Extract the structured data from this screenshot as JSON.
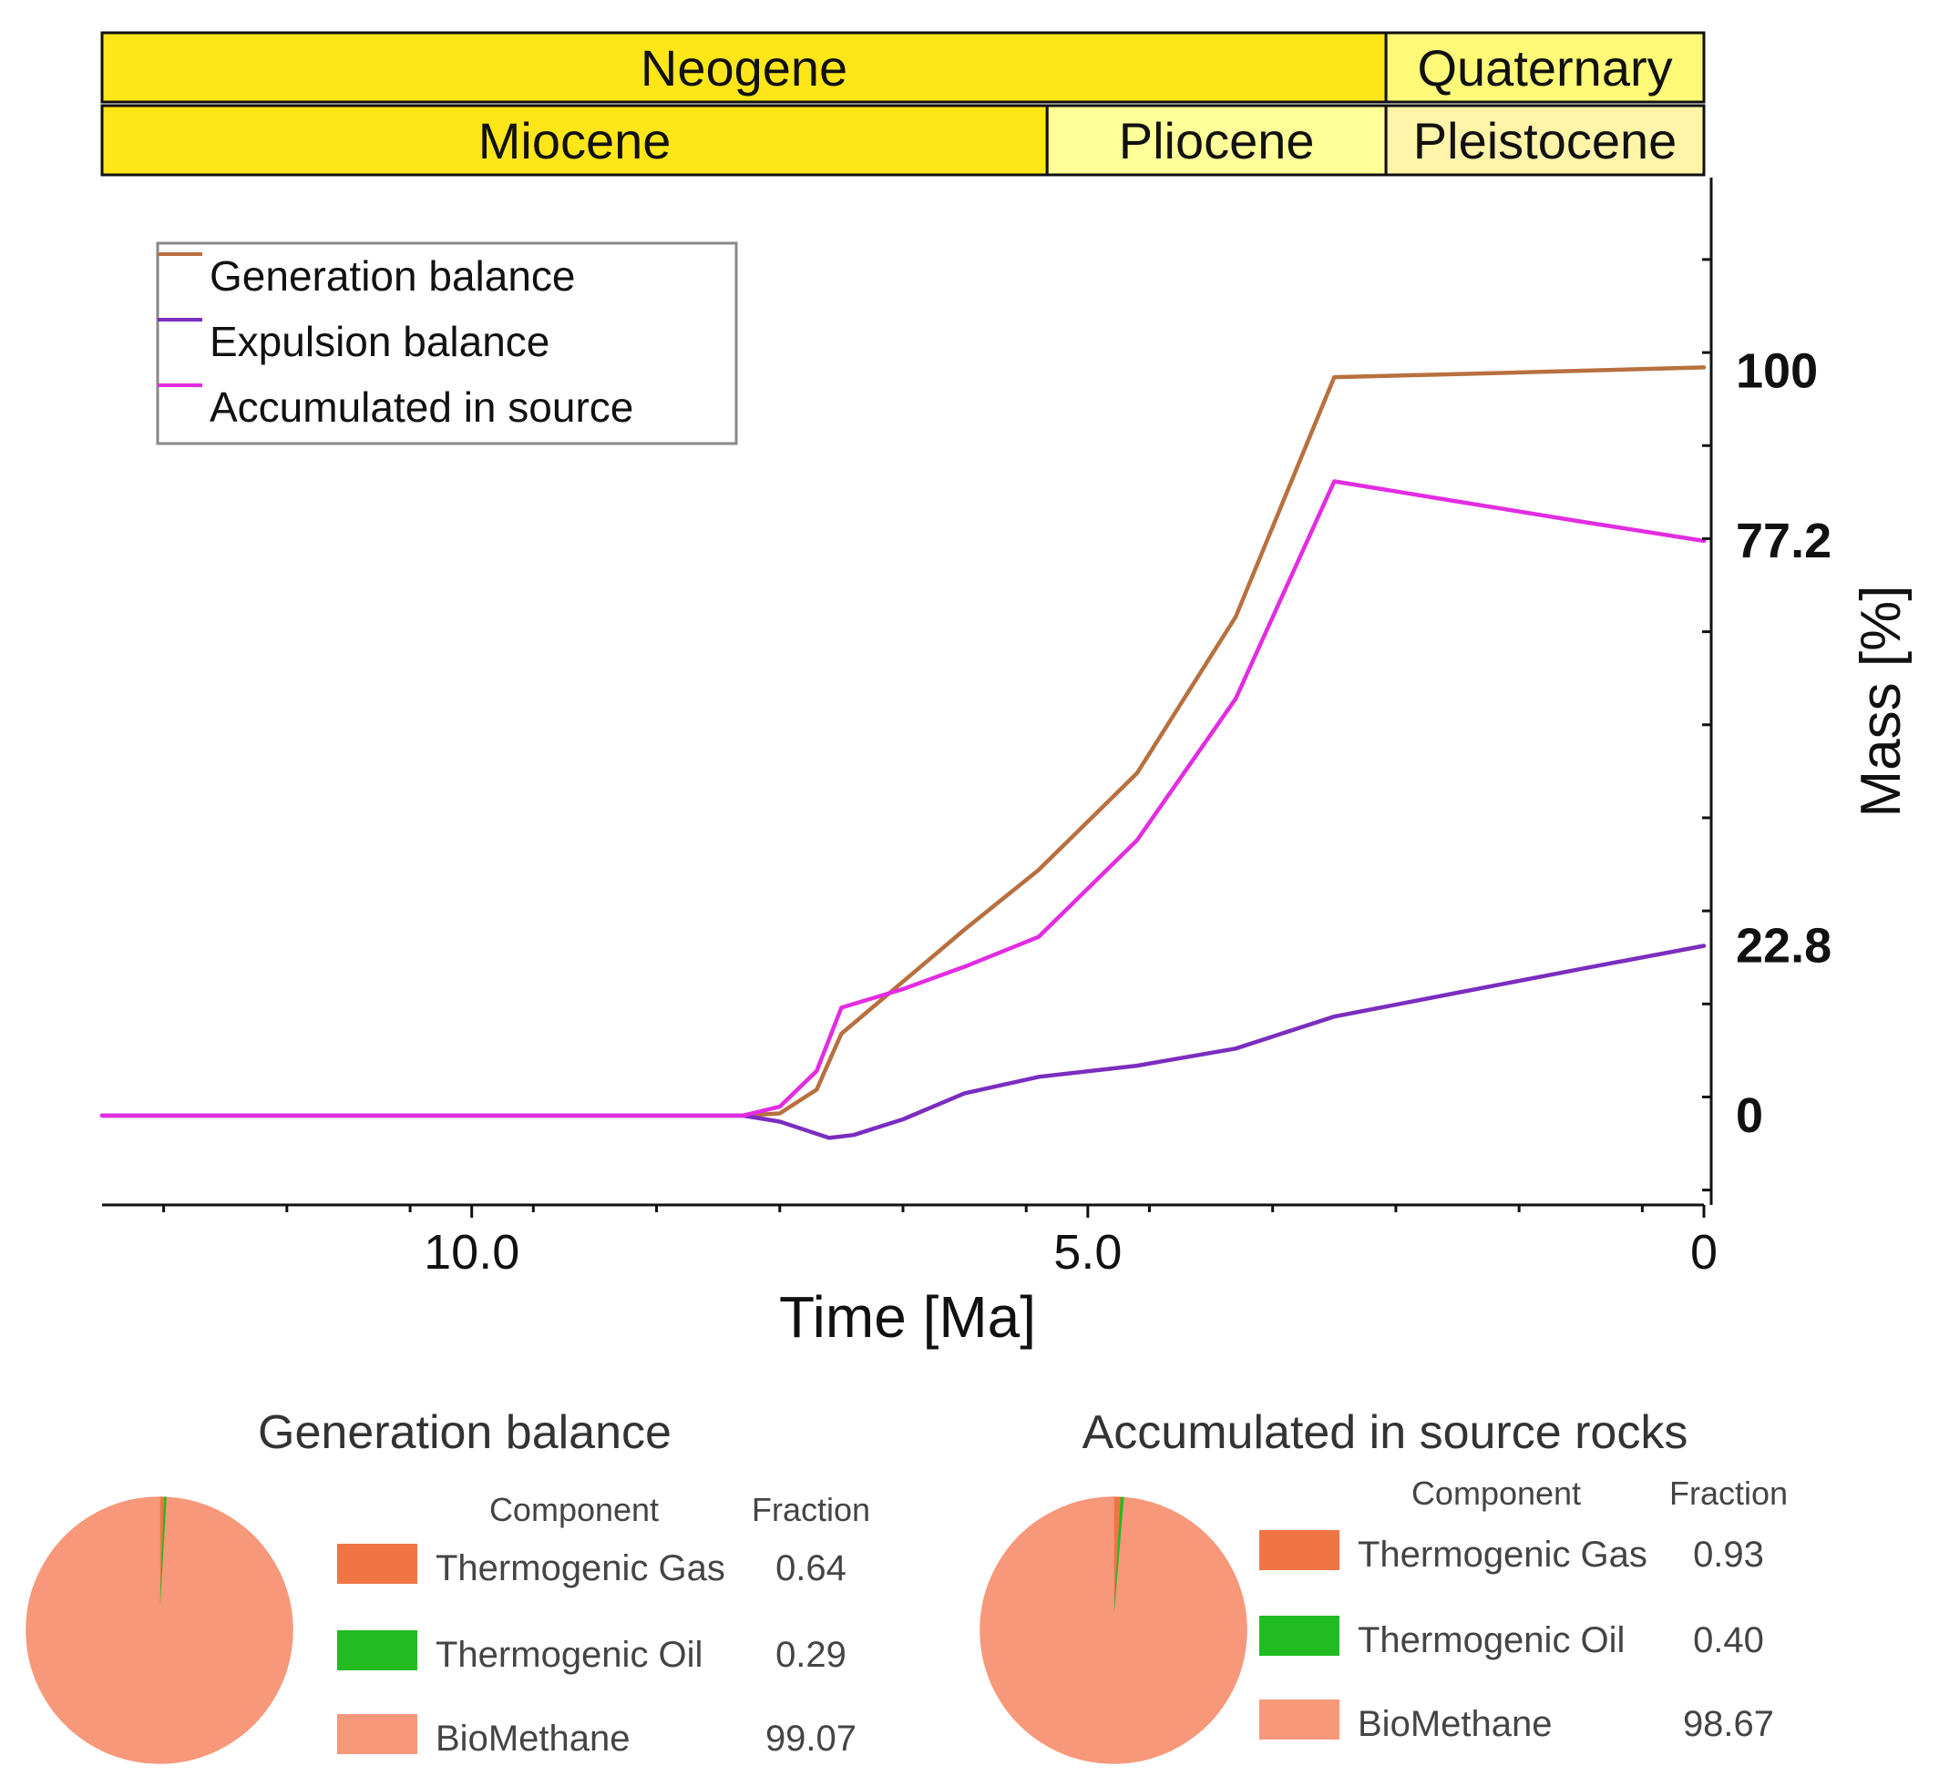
{
  "chart_data": [
    {
      "type": "line",
      "title": "",
      "periods": [
        {
          "label": "Neogene",
          "start": 13.0,
          "end": 2.58,
          "color": "#ffe619"
        },
        {
          "label": "Quaternary",
          "start": 2.58,
          "end": 0,
          "color": "#fff978"
        }
      ],
      "epochs": [
        {
          "label": "Miocene",
          "start": 13.0,
          "end": 5.33,
          "color": "#ffe619"
        },
        {
          "label": "Pliocene",
          "start": 5.33,
          "end": 2.58,
          "color": "#ffff99"
        },
        {
          "label": "Pleistocene",
          "start": 2.58,
          "end": 0,
          "color": "#fff4a8"
        }
      ],
      "xlabel": "Time [Ma]",
      "ylabel": "Mass [%]",
      "xlim": [
        13.0,
        0
      ],
      "ylim": [
        -12,
        126
      ],
      "x_ticks": [
        {
          "value": 10.0,
          "label": "10.0"
        },
        {
          "value": 5.0,
          "label": "5.0"
        },
        {
          "value": 0,
          "label": "0"
        }
      ],
      "y_ticks": [
        {
          "value": 100,
          "label": "100"
        },
        {
          "value": 77.2,
          "label": "77.2"
        },
        {
          "value": 22.8,
          "label": "22.8"
        },
        {
          "value": 0,
          "label": "0"
        }
      ],
      "legend_position": "top-left",
      "series": [
        {
          "name": "Generation balance",
          "color": "#b8703f",
          "x": [
            13.0,
            7.8,
            7.5,
            7.2,
            7.0,
            6.5,
            6.0,
            5.4,
            4.6,
            3.8,
            3.0,
            2.0,
            0
          ],
          "y": [
            0,
            0,
            0.3,
            3.5,
            11,
            18,
            25,
            33,
            46,
            67,
            99.2,
            99.6,
            100.5
          ]
        },
        {
          "name": "Expulsion balance",
          "color": "#7b2dbf",
          "x": [
            13.0,
            7.8,
            7.5,
            7.1,
            6.9,
            6.5,
            6.0,
            5.4,
            4.6,
            3.8,
            3.0,
            2.0,
            1.0,
            0
          ],
          "y": [
            0,
            0,
            -0.8,
            -3,
            -2.6,
            -0.5,
            3,
            5.2,
            6.7,
            9,
            13.3,
            16.5,
            19.7,
            22.8
          ]
        },
        {
          "name": "Accumulated in source",
          "color": "#e22ce2",
          "x": [
            13.0,
            7.8,
            7.5,
            7.2,
            7.0,
            6.5,
            6.0,
            5.4,
            4.6,
            3.8,
            3.0,
            2.0,
            1.0,
            0
          ],
          "y": [
            0,
            0,
            1.2,
            6,
            14.5,
            17,
            20,
            24,
            37,
            56,
            85.2,
            82.5,
            79.8,
            77.2
          ]
        }
      ]
    },
    {
      "type": "pie",
      "title": "Generation balance",
      "header": {
        "component": "Component",
        "fraction": "Fraction"
      },
      "slices": [
        {
          "label": "Thermogenic Gas",
          "value": 0.64,
          "value_text": "0.64",
          "color": "#ef7545"
        },
        {
          "label": "Thermogenic Oil",
          "value": 0.29,
          "value_text": "0.29",
          "color": "#22bb22"
        },
        {
          "label": "BioMethane",
          "value": 99.07,
          "value_text": "99.07",
          "color": "#f7987a"
        }
      ]
    },
    {
      "type": "pie",
      "title": "Accumulated in source rocks",
      "header": {
        "component": "Component",
        "fraction": "Fraction"
      },
      "slices": [
        {
          "label": "Thermogenic Gas",
          "value": 0.93,
          "value_text": "0.93",
          "color": "#ef7545"
        },
        {
          "label": "Thermogenic Oil",
          "value": 0.4,
          "value_text": "0.40",
          "color": "#22bb22"
        },
        {
          "label": "BioMethane",
          "value": 98.67,
          "value_text": "98.67",
          "color": "#f7987a"
        }
      ]
    }
  ]
}
